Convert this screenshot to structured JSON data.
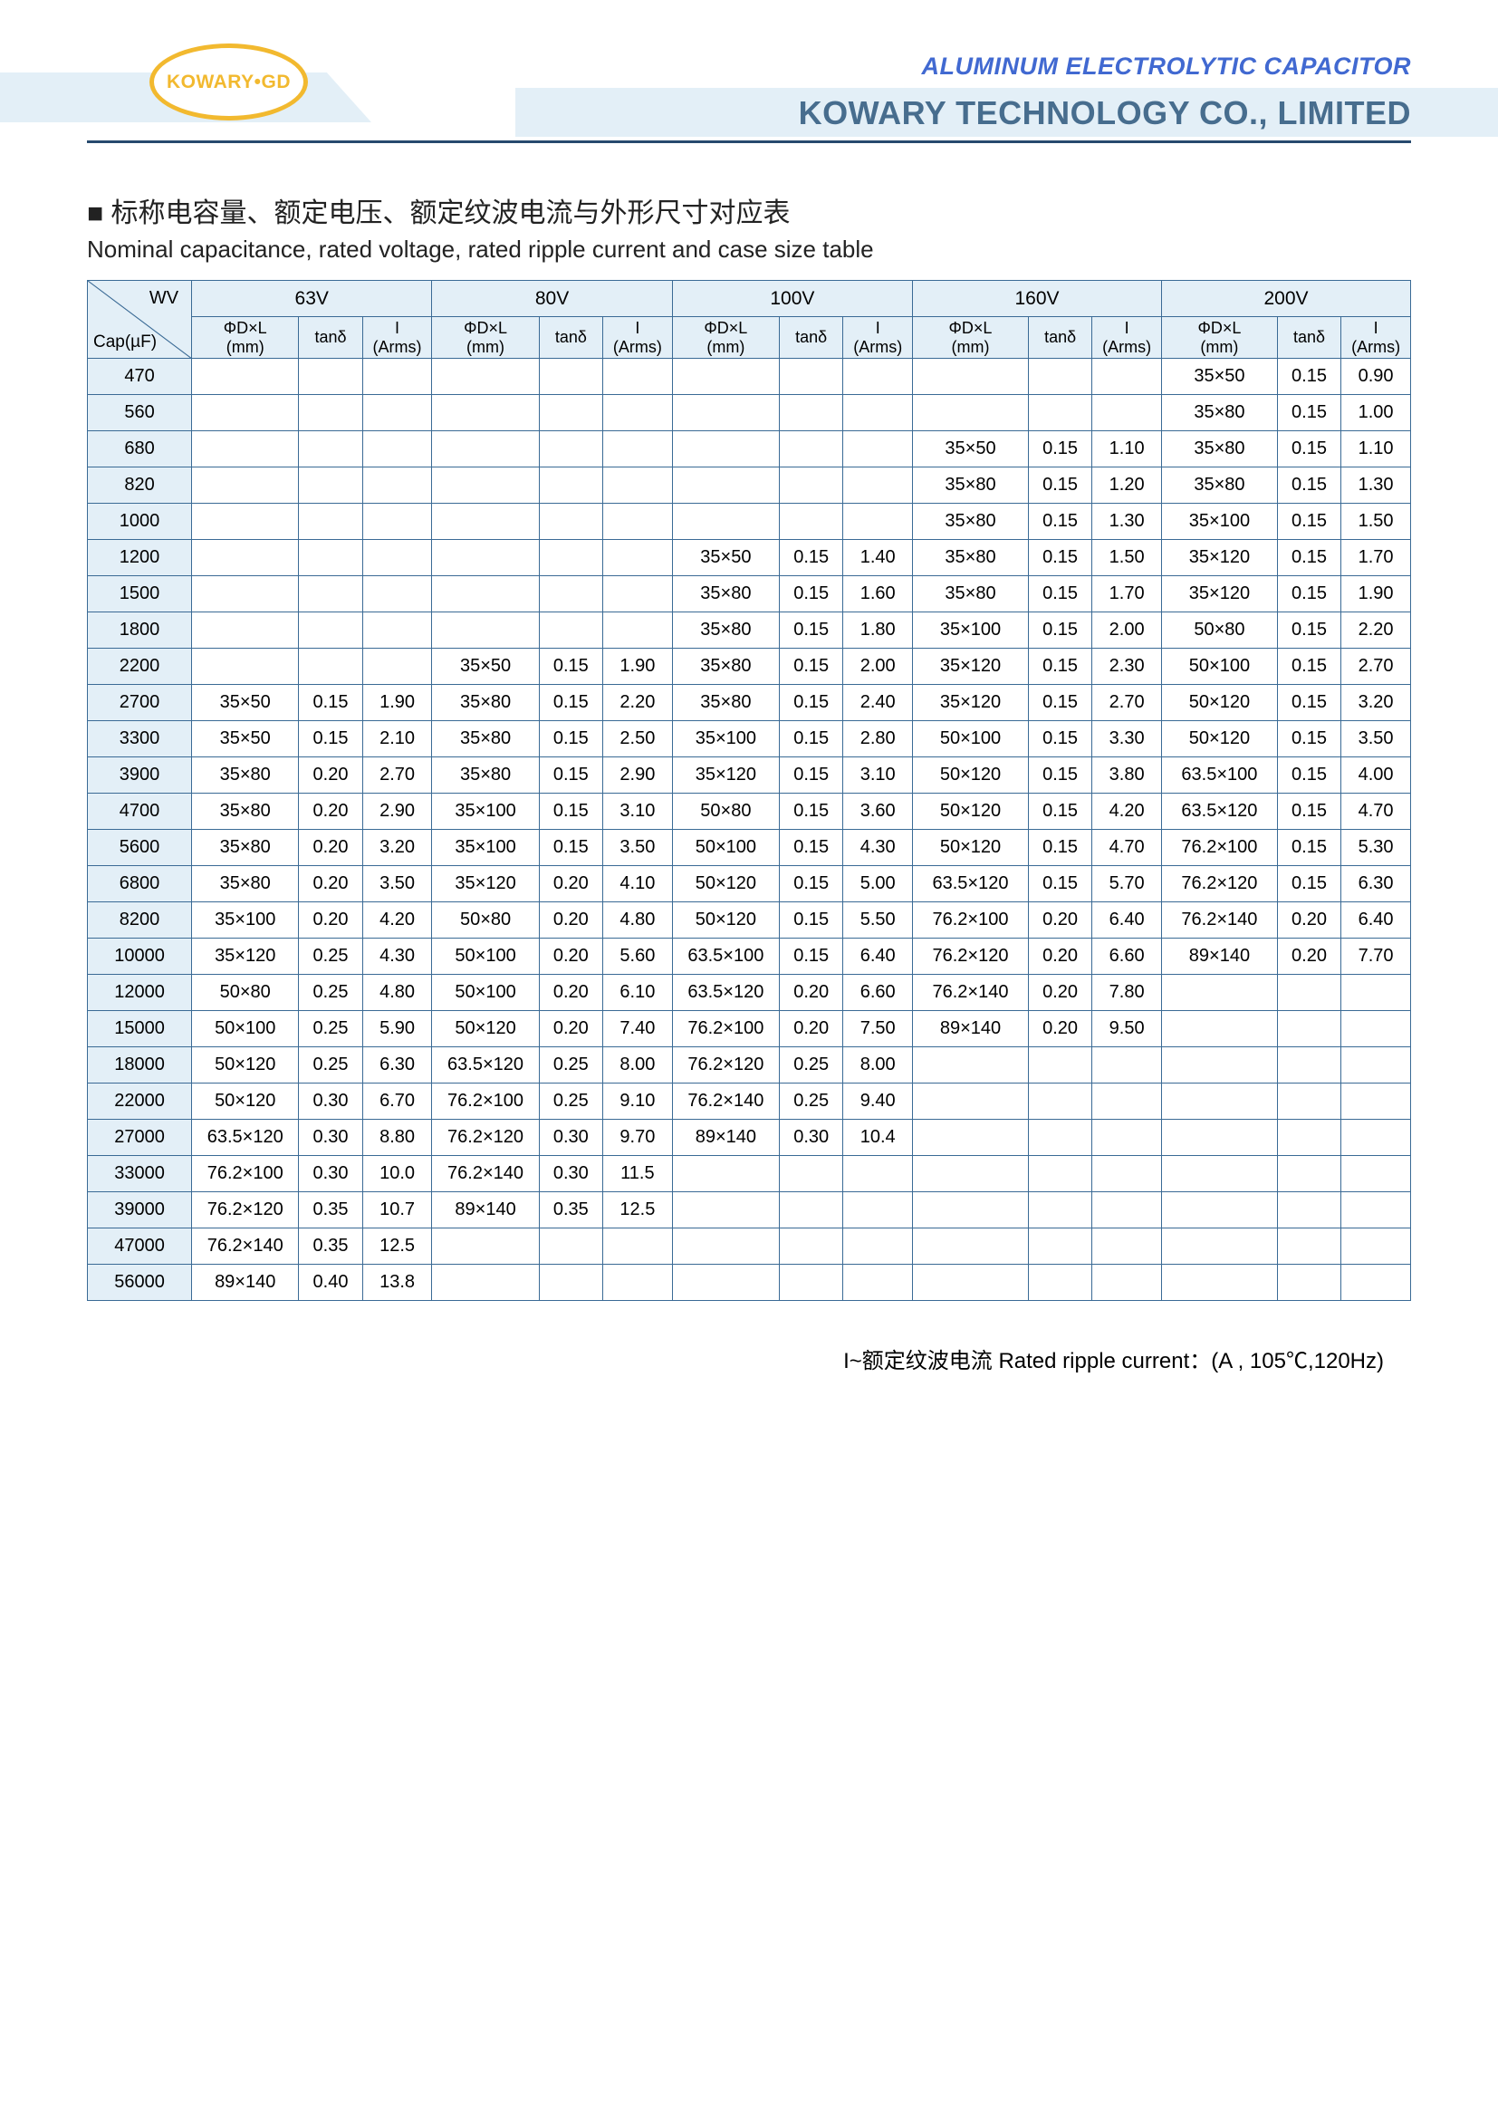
{
  "header": {
    "logo_text": "KOWARY•GD",
    "product_line": "ALUMINUM ELECTROLYTIC CAPACITOR",
    "company_name": "KOWARY TECHNOLOGY CO., LIMITED"
  },
  "titles": {
    "zh": "■ 标称电容量、额定电压、额定纹波电流与外形尺寸对应表",
    "en": "Nominal capacitance, rated voltage, rated ripple current and case size table"
  },
  "table": {
    "corner": {
      "wv": "WV",
      "cap": "Cap(µF)"
    },
    "voltages": [
      "63V",
      "80V",
      "100V",
      "160V",
      "200V"
    ],
    "sub_headers": {
      "dl": "ΦD×L\n(mm)",
      "tan": "tanδ",
      "i": "I\n(Arms)"
    },
    "caps": [
      "470",
      "560",
      "680",
      "820",
      "1000",
      "1200",
      "1500",
      "1800",
      "2200",
      "2700",
      "3300",
      "3900",
      "4700",
      "5600",
      "6800",
      "8200",
      "10000",
      "12000",
      "15000",
      "18000",
      "22000",
      "27000",
      "33000",
      "39000",
      "47000",
      "56000"
    ],
    "data": {
      "470": {
        "200V": [
          "35×50",
          "0.15",
          "0.90"
        ]
      },
      "560": {
        "200V": [
          "35×80",
          "0.15",
          "1.00"
        ]
      },
      "680": {
        "160V": [
          "35×50",
          "0.15",
          "1.10"
        ],
        "200V": [
          "35×80",
          "0.15",
          "1.10"
        ]
      },
      "820": {
        "160V": [
          "35×80",
          "0.15",
          "1.20"
        ],
        "200V": [
          "35×80",
          "0.15",
          "1.30"
        ]
      },
      "1000": {
        "160V": [
          "35×80",
          "0.15",
          "1.30"
        ],
        "200V": [
          "35×100",
          "0.15",
          "1.50"
        ]
      },
      "1200": {
        "100V": [
          "35×50",
          "0.15",
          "1.40"
        ],
        "160V": [
          "35×80",
          "0.15",
          "1.50"
        ],
        "200V": [
          "35×120",
          "0.15",
          "1.70"
        ]
      },
      "1500": {
        "100V": [
          "35×80",
          "0.15",
          "1.60"
        ],
        "160V": [
          "35×80",
          "0.15",
          "1.70"
        ],
        "200V": [
          "35×120",
          "0.15",
          "1.90"
        ]
      },
      "1800": {
        "100V": [
          "35×80",
          "0.15",
          "1.80"
        ],
        "160V": [
          "35×100",
          "0.15",
          "2.00"
        ],
        "200V": [
          "50×80",
          "0.15",
          "2.20"
        ]
      },
      "2200": {
        "80V": [
          "35×50",
          "0.15",
          "1.90"
        ],
        "100V": [
          "35×80",
          "0.15",
          "2.00"
        ],
        "160V": [
          "35×120",
          "0.15",
          "2.30"
        ],
        "200V": [
          "50×100",
          "0.15",
          "2.70"
        ]
      },
      "2700": {
        "63V": [
          "35×50",
          "0.15",
          "1.90"
        ],
        "80V": [
          "35×80",
          "0.15",
          "2.20"
        ],
        "100V": [
          "35×80",
          "0.15",
          "2.40"
        ],
        "160V": [
          "35×120",
          "0.15",
          "2.70"
        ],
        "200V": [
          "50×120",
          "0.15",
          "3.20"
        ]
      },
      "3300": {
        "63V": [
          "35×50",
          "0.15",
          "2.10"
        ],
        "80V": [
          "35×80",
          "0.15",
          "2.50"
        ],
        "100V": [
          "35×100",
          "0.15",
          "2.80"
        ],
        "160V": [
          "50×100",
          "0.15",
          "3.30"
        ],
        "200V": [
          "50×120",
          "0.15",
          "3.50"
        ]
      },
      "3900": {
        "63V": [
          "35×80",
          "0.20",
          "2.70"
        ],
        "80V": [
          "35×80",
          "0.15",
          "2.90"
        ],
        "100V": [
          "35×120",
          "0.15",
          "3.10"
        ],
        "160V": [
          "50×120",
          "0.15",
          "3.80"
        ],
        "200V": [
          "63.5×100",
          "0.15",
          "4.00"
        ]
      },
      "4700": {
        "63V": [
          "35×80",
          "0.20",
          "2.90"
        ],
        "80V": [
          "35×100",
          "0.15",
          "3.10"
        ],
        "100V": [
          "50×80",
          "0.15",
          "3.60"
        ],
        "160V": [
          "50×120",
          "0.15",
          "4.20"
        ],
        "200V": [
          "63.5×120",
          "0.15",
          "4.70"
        ]
      },
      "5600": {
        "63V": [
          "35×80",
          "0.20",
          "3.20"
        ],
        "80V": [
          "35×100",
          "0.15",
          "3.50"
        ],
        "100V": [
          "50×100",
          "0.15",
          "4.30"
        ],
        "160V": [
          "50×120",
          "0.15",
          "4.70"
        ],
        "200V": [
          "76.2×100",
          "0.15",
          "5.30"
        ]
      },
      "6800": {
        "63V": [
          "35×80",
          "0.20",
          "3.50"
        ],
        "80V": [
          "35×120",
          "0.20",
          "4.10"
        ],
        "100V": [
          "50×120",
          "0.15",
          "5.00"
        ],
        "160V": [
          "63.5×120",
          "0.15",
          "5.70"
        ],
        "200V": [
          "76.2×120",
          "0.15",
          "6.30"
        ]
      },
      "8200": {
        "63V": [
          "35×100",
          "0.20",
          "4.20"
        ],
        "80V": [
          "50×80",
          "0.20",
          "4.80"
        ],
        "100V": [
          "50×120",
          "0.15",
          "5.50"
        ],
        "160V": [
          "76.2×100",
          "0.20",
          "6.40"
        ],
        "200V": [
          "76.2×140",
          "0.20",
          "6.40"
        ]
      },
      "10000": {
        "63V": [
          "35×120",
          "0.25",
          "4.30"
        ],
        "80V": [
          "50×100",
          "0.20",
          "5.60"
        ],
        "100V": [
          "63.5×100",
          "0.15",
          "6.40"
        ],
        "160V": [
          "76.2×120",
          "0.20",
          "6.60"
        ],
        "200V": [
          "89×140",
          "0.20",
          "7.70"
        ]
      },
      "12000": {
        "63V": [
          "50×80",
          "0.25",
          "4.80"
        ],
        "80V": [
          "50×100",
          "0.20",
          "6.10"
        ],
        "100V": [
          "63.5×120",
          "0.20",
          "6.60"
        ],
        "160V": [
          "76.2×140",
          "0.20",
          "7.80"
        ]
      },
      "15000": {
        "63V": [
          "50×100",
          "0.25",
          "5.90"
        ],
        "80V": [
          "50×120",
          "0.20",
          "7.40"
        ],
        "100V": [
          "76.2×100",
          "0.20",
          "7.50"
        ],
        "160V": [
          "89×140",
          "0.20",
          "9.50"
        ]
      },
      "18000": {
        "63V": [
          "50×120",
          "0.25",
          "6.30"
        ],
        "80V": [
          "63.5×120",
          "0.25",
          "8.00"
        ],
        "100V": [
          "76.2×120",
          "0.25",
          "8.00"
        ]
      },
      "22000": {
        "63V": [
          "50×120",
          "0.30",
          "6.70"
        ],
        "80V": [
          "76.2×100",
          "0.25",
          "9.10"
        ],
        "100V": [
          "76.2×140",
          "0.25",
          "9.40"
        ]
      },
      "27000": {
        "63V": [
          "63.5×120",
          "0.30",
          "8.80"
        ],
        "80V": [
          "76.2×120",
          "0.30",
          "9.70"
        ],
        "100V": [
          "89×140",
          "0.30",
          "10.4"
        ]
      },
      "33000": {
        "63V": [
          "76.2×100",
          "0.30",
          "10.0"
        ],
        "80V": [
          "76.2×140",
          "0.30",
          "11.5"
        ]
      },
      "39000": {
        "63V": [
          "76.2×120",
          "0.35",
          "10.7"
        ],
        "80V": [
          "89×140",
          "0.35",
          "12.5"
        ]
      },
      "47000": {
        "63V": [
          "76.2×140",
          "0.35",
          "12.5"
        ]
      },
      "56000": {
        "63V": [
          "89×140",
          "0.40",
          "13.8"
        ]
      }
    }
  },
  "footnote": "I~额定纹波电流 Rated ripple current：(A , 105℃,120Hz)",
  "colors": {
    "header_band": "#e3eff7",
    "border": "#3a6a95",
    "logo": "#f2b92f",
    "product_line": "#4169d1",
    "company": "#476d8e"
  }
}
